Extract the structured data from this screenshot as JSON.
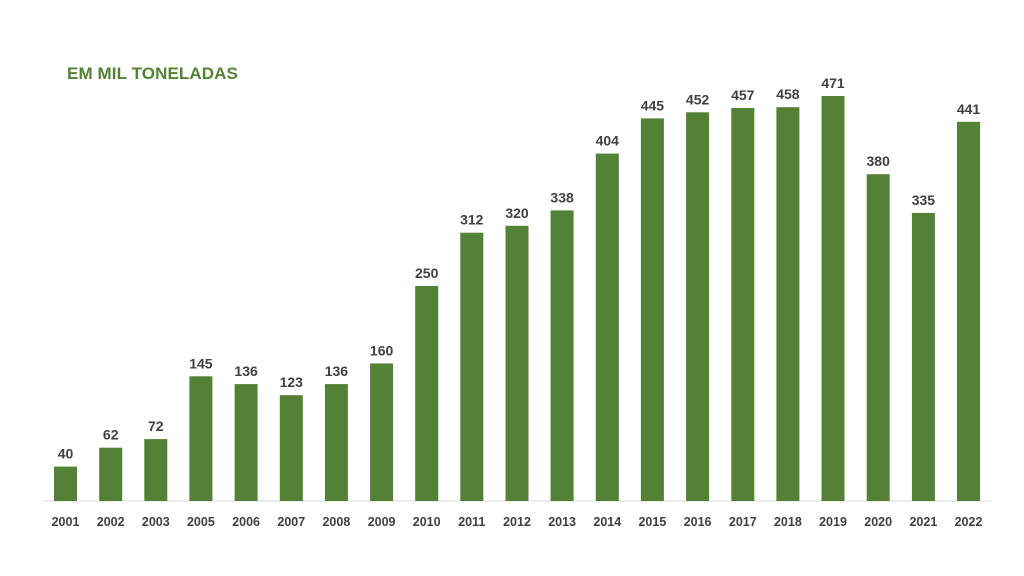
{
  "chart_data": {
    "type": "bar",
    "title": "EM MIL TONELADAS",
    "categories": [
      "2001",
      "2002",
      "2003",
      "2005",
      "2006",
      "2007",
      "2008",
      "2009",
      "2010",
      "2011",
      "2012",
      "2013",
      "2014",
      "2015",
      "2016",
      "2017",
      "2018",
      "2019",
      "2020",
      "2021",
      "2022"
    ],
    "values": [
      40,
      62,
      72,
      145,
      136,
      123,
      136,
      160,
      250,
      312,
      320,
      338,
      404,
      445,
      452,
      457,
      458,
      471,
      380,
      335,
      441
    ],
    "xlabel": "",
    "ylabel": "",
    "ylim": [
      0,
      471
    ],
    "grid": false,
    "legend": "none",
    "data_labels": true,
    "bar_color": "#538135",
    "label_color": "#404040",
    "axis_color": "#d9d9d9"
  }
}
